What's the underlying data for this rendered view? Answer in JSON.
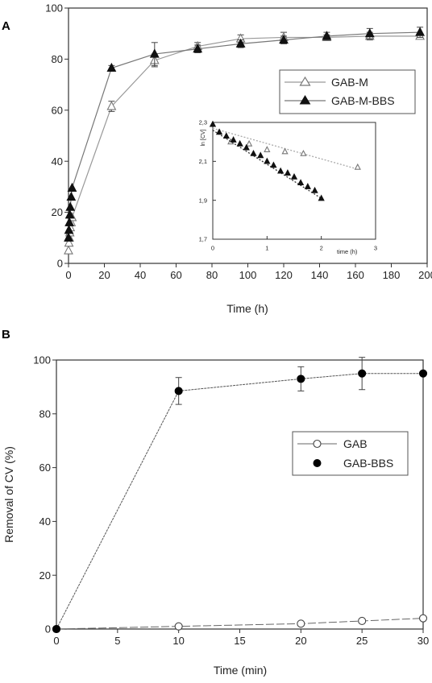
{
  "chart_data": [
    {
      "panel_label": "A",
      "type": "line",
      "xlabel": "Time (h)",
      "ylabel": "",
      "xlim": [
        0,
        200
      ],
      "ylim": [
        0,
        100
      ],
      "x_ticks": [
        "0",
        "20",
        "40",
        "60",
        "80",
        "100",
        "120",
        "140",
        "160",
        "180",
        "200"
      ],
      "y_ticks": [
        "0",
        "20",
        "40",
        "60",
        "80",
        "100"
      ],
      "grid": false,
      "legend_position": "center-right",
      "series": [
        {
          "name": "GAB-M",
          "marker": "open-triangle",
          "x": [
            0,
            0.25,
            0.5,
            0.75,
            1,
            1.5,
            2,
            24,
            48,
            72,
            96,
            120,
            144,
            168,
            196
          ],
          "y": [
            5,
            8,
            10,
            12,
            14,
            16,
            18,
            61.5,
            79.5,
            85,
            88,
            88.5,
            88.5,
            89,
            89
          ],
          "yerr": [
            0,
            0,
            0,
            0,
            0,
            0,
            0,
            2,
            2.5,
            1.5,
            1.5,
            2,
            1,
            1.5,
            1
          ]
        },
        {
          "name": "GAB-M-BBS",
          "marker": "filled-triangle",
          "x": [
            0,
            0.25,
            0.5,
            0.75,
            1,
            1.5,
            2,
            24,
            48,
            72,
            96,
            120,
            144,
            168,
            196
          ],
          "y": [
            10,
            13,
            16,
            19,
            22,
            26,
            29.5,
            76.5,
            82,
            84,
            86,
            87.5,
            89,
            90,
            90.5
          ],
          "yerr": [
            0,
            0,
            0,
            0,
            0,
            0,
            0,
            1,
            4.5,
            1.5,
            1.5,
            1.5,
            1.5,
            2,
            2
          ]
        }
      ],
      "inset": {
        "ylabel": "ln [CV]",
        "xlabel": "time (h)",
        "xlim": [
          0,
          3
        ],
        "ylim": [
          1.7,
          2.3
        ],
        "x_ticks": [
          "0",
          "1",
          "2",
          "3"
        ],
        "y_ticks": [
          "1,7",
          "1,9",
          "2,1",
          "2,3"
        ],
        "series": [
          {
            "name": "GAB-M",
            "marker": "open-triangle",
            "x": [
              0,
              0.33,
              0.67,
              1,
              1.33,
              1.67,
              2.67
            ],
            "y": [
              2.29,
              2.2,
              2.19,
              2.16,
              2.15,
              2.14,
              2.07
            ],
            "fit": [
              [
                0,
                2.27
              ],
              [
                2.67,
                2.06
              ]
            ]
          },
          {
            "name": "GAB-M-BBS",
            "marker": "filled-triangle",
            "x": [
              0,
              0.12,
              0.25,
              0.38,
              0.5,
              0.62,
              0.75,
              0.88,
              1,
              1.12,
              1.25,
              1.38,
              1.5,
              1.62,
              1.75,
              1.88,
              2
            ],
            "y": [
              2.29,
              2.25,
              2.23,
              2.21,
              2.19,
              2.17,
              2.14,
              2.13,
              2.1,
              2.08,
              2.05,
              2.04,
              2.02,
              1.99,
              1.97,
              1.95,
              1.91
            ],
            "fit": [
              [
                0,
                2.26
              ],
              [
                2,
                1.91
              ]
            ]
          }
        ]
      }
    },
    {
      "panel_label": "B",
      "type": "line",
      "xlabel": "Time (min)",
      "ylabel": "Removal of CV (%)",
      "xlim": [
        0,
        30
      ],
      "ylim": [
        0,
        100
      ],
      "x_ticks": [
        "0",
        "5",
        "10",
        "15",
        "20",
        "25",
        "30"
      ],
      "y_ticks": [
        "0",
        "20",
        "40",
        "60",
        "80",
        "100"
      ],
      "grid": false,
      "legend_position": "center-right",
      "series": [
        {
          "name": "GAB",
          "marker": "open-circle",
          "x": [
            0,
            10,
            20,
            25,
            30
          ],
          "y": [
            0,
            1,
            2,
            3,
            4
          ],
          "yerr": [
            0,
            0.6,
            0.6,
            0.6,
            0.6
          ]
        },
        {
          "name": "GAB-BBS",
          "marker": "filled-circle",
          "x": [
            0,
            10,
            20,
            25,
            30
          ],
          "y": [
            0,
            88.5,
            93,
            95,
            95
          ],
          "yerr": [
            0,
            5,
            4.5,
            6,
            0
          ]
        }
      ]
    }
  ]
}
